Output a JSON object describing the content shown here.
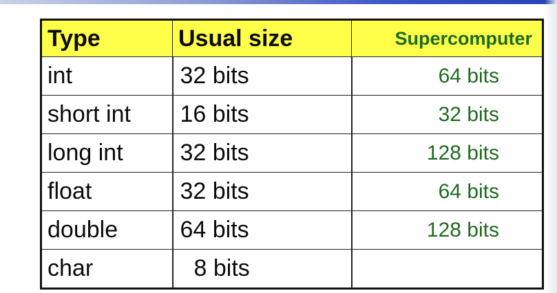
{
  "table": {
    "headers": [
      "Type",
      "Usual size",
      "Supercomputer"
    ],
    "rows": [
      {
        "type": "int",
        "usual": "32 bits",
        "super": "64 bits"
      },
      {
        "type": "short int",
        "usual": "16 bits",
        "super": "32 bits"
      },
      {
        "type": "long int",
        "usual": "32 bits",
        "super": "128 bits"
      },
      {
        "type": "float",
        "usual": "32 bits",
        "super": "64 bits"
      },
      {
        "type": "double",
        "usual": "64 bits",
        "super": "128 bits"
      },
      {
        "type": "char",
        "usual": "8 bits",
        "super": ""
      }
    ]
  },
  "colors": {
    "header_background": "#ffff4a",
    "supercomputer_text": "#1e6b1e",
    "border": "#111111"
  }
}
